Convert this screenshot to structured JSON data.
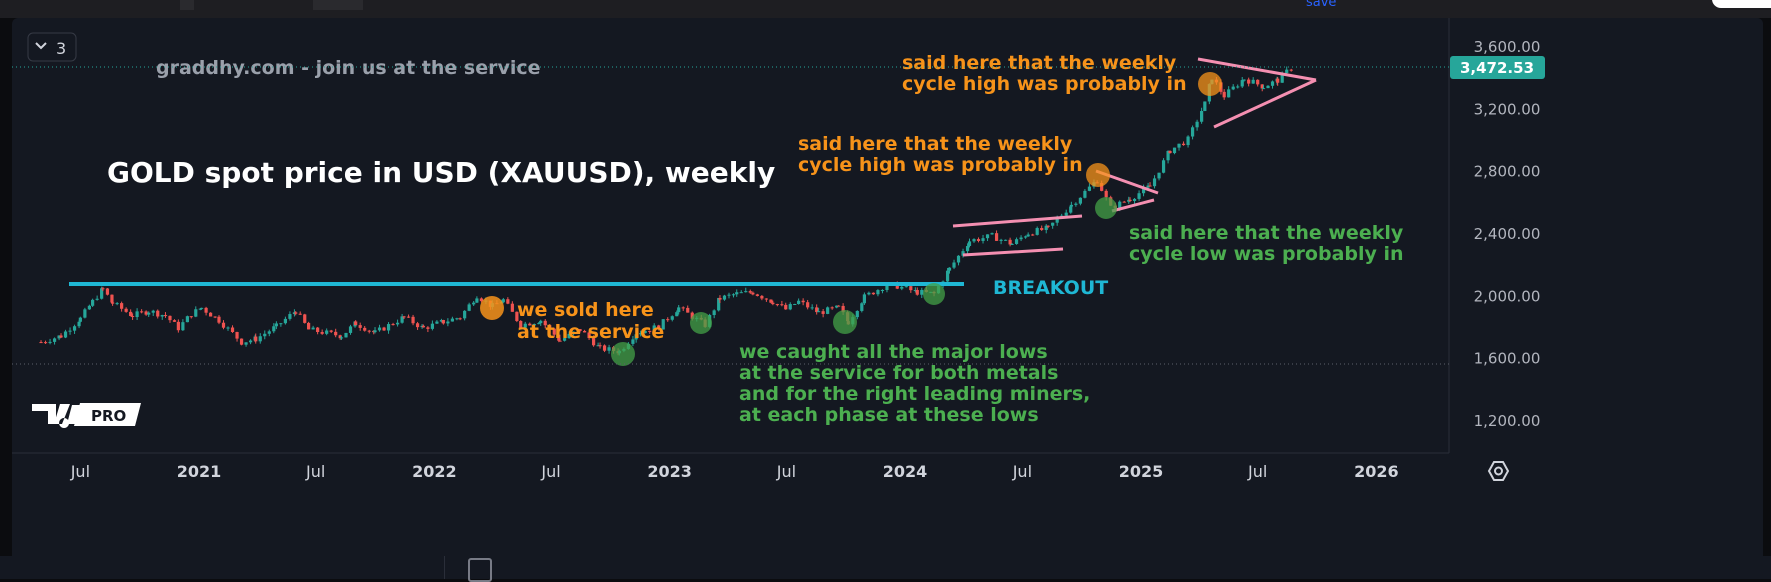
{
  "toolbar": {
    "save_label": "save"
  },
  "legend_toggle": {
    "count": "3"
  },
  "watermark": "graddhy.com - join us at the service",
  "title": "GOLD spot price in USD (XAUUSD), weekly",
  "logo": {
    "text": "PRO"
  },
  "current_price": "3,472.53",
  "settings_icon": "gear-hexagon-icon",
  "annotations": {
    "breakout": "BREAKOUT",
    "sold": [
      "we sold here",
      "at the service"
    ],
    "caught": [
      "we caught all the major lows",
      "at the service for both metals",
      "and for the right leading miners,",
      "at each phase at these lows"
    ],
    "high1": [
      "said here that the weekly",
      "cycle high was probably in"
    ],
    "high2": [
      "said here that the weekly",
      "cycle high was probably in"
    ],
    "low1": [
      "said here that the weekly",
      "cycle low was probably in"
    ]
  },
  "colors": {
    "up": "#26a69a",
    "down": "#ef5350",
    "resistance": "#1fb7d4",
    "pattern": "#f48fb1",
    "orange": "#f7931a",
    "green_text": "#4caf50",
    "price_label": "#26a69a",
    "background": "#141821"
  },
  "chart_data": {
    "type": "candlestick",
    "title": "GOLD spot price in USD (XAUUSD), weekly",
    "interval": "weekly",
    "x_ticks": [
      "Jul",
      "2021",
      "Jul",
      "2022",
      "Jul",
      "2023",
      "Jul",
      "2024",
      "Jul",
      "2025",
      "Jul",
      "2026"
    ],
    "y_ticks": [
      "1,200.00",
      "1,600.00",
      "2,000.00",
      "2,400.00",
      "2,800.00",
      "3,200.00",
      "3,600.00"
    ],
    "ylim": [
      1120,
      3720
    ],
    "xlim": [
      "2020-05-01",
      "2026-05-01"
    ],
    "last_price": 3472.53,
    "resistance_level": 2075,
    "series": [
      {
        "name": "XAUUSD weekly close (approx.)",
        "points": [
          [
            "2020-05-01",
            1700
          ],
          [
            "2020-06-01",
            1740
          ],
          [
            "2020-07-01",
            1850
          ],
          [
            "2020-07-20",
            1960
          ],
          [
            "2020-08-05",
            2040
          ],
          [
            "2020-08-20",
            1950
          ],
          [
            "2020-09-20",
            1870
          ],
          [
            "2020-10-15",
            1900
          ],
          [
            "2020-11-10",
            1870
          ],
          [
            "2020-11-30",
            1790
          ],
          [
            "2020-12-20",
            1880
          ],
          [
            "2021-01-05",
            1920
          ],
          [
            "2021-02-01",
            1840
          ],
          [
            "2021-03-08",
            1700
          ],
          [
            "2021-03-30",
            1720
          ],
          [
            "2021-05-01",
            1800
          ],
          [
            "2021-05-31",
            1900
          ],
          [
            "2021-06-20",
            1780
          ],
          [
            "2021-08-10",
            1740
          ],
          [
            "2021-09-01",
            1820
          ],
          [
            "2021-10-01",
            1760
          ],
          [
            "2021-11-15",
            1860
          ],
          [
            "2021-12-15",
            1790
          ],
          [
            "2022-01-15",
            1830
          ],
          [
            "2022-02-10",
            1860
          ],
          [
            "2022-03-08",
            2000
          ],
          [
            "2022-04-01",
            1930
          ],
          [
            "2022-04-18",
            1970
          ],
          [
            "2022-05-15",
            1810
          ],
          [
            "2022-06-15",
            1840
          ],
          [
            "2022-07-15",
            1710
          ],
          [
            "2022-08-15",
            1780
          ],
          [
            "2022-09-15",
            1660
          ],
          [
            "2022-10-15",
            1640
          ],
          [
            "2022-11-10",
            1760
          ],
          [
            "2022-12-15",
            1800
          ],
          [
            "2023-01-15",
            1920
          ],
          [
            "2023-02-25",
            1810
          ],
          [
            "2023-03-20",
            1980
          ],
          [
            "2023-04-15",
            2010
          ],
          [
            "2023-05-10",
            2020
          ],
          [
            "2023-06-10",
            1960
          ],
          [
            "2023-06-30",
            1910
          ],
          [
            "2023-07-20",
            1960
          ],
          [
            "2023-08-20",
            1890
          ],
          [
            "2023-09-20",
            1920
          ],
          [
            "2023-10-05",
            1830
          ],
          [
            "2023-10-30",
            1990
          ],
          [
            "2023-12-04",
            2070
          ],
          [
            "2023-12-20",
            2060
          ],
          [
            "2024-01-20",
            2020
          ],
          [
            "2024-02-15",
            2010
          ],
          [
            "2024-03-10",
            2170
          ],
          [
            "2024-04-10",
            2350
          ],
          [
            "2024-05-15",
            2380
          ],
          [
            "2024-06-15",
            2330
          ],
          [
            "2024-07-10",
            2400
          ],
          [
            "2024-08-10",
            2430
          ],
          [
            "2024-09-15",
            2580
          ],
          [
            "2024-10-25",
            2740
          ],
          [
            "2024-11-15",
            2560
          ],
          [
            "2024-12-15",
            2620
          ],
          [
            "2025-01-15",
            2700
          ],
          [
            "2025-02-15",
            2930
          ],
          [
            "2025-03-15",
            3000
          ],
          [
            "2025-04-10",
            3230
          ],
          [
            "2025-04-21",
            3400
          ],
          [
            "2025-05-10",
            3280
          ],
          [
            "2025-06-10",
            3390
          ],
          [
            "2025-07-10",
            3340
          ],
          [
            "2025-08-01",
            3380
          ],
          [
            "2025-08-25",
            3472.53
          ]
        ]
      }
    ]
  }
}
